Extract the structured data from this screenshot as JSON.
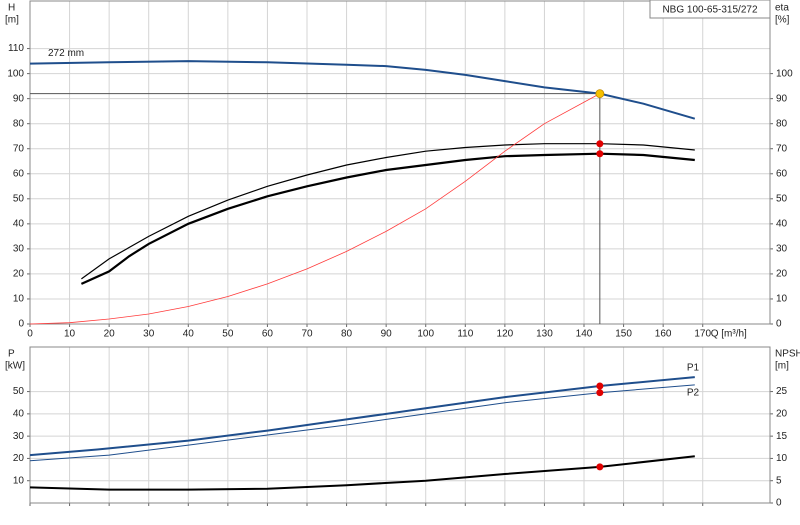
{
  "chart_data": [
    {
      "type": "line",
      "title": "NBG 100-65-315/272",
      "ylabel": "H",
      "yunit": "[m]",
      "y2label": "eta",
      "y2unit": "[%]",
      "xlabel": "Q [m³/h]",
      "xlim": [
        0,
        187
      ],
      "xticks": [
        0,
        10,
        20,
        30,
        40,
        50,
        60,
        70,
        80,
        90,
        100,
        110,
        120,
        130,
        140,
        150,
        160,
        170
      ],
      "show_xtick_labels": true,
      "ylim": [
        0,
        129
      ],
      "yticks": [
        0,
        10,
        20,
        30,
        40,
        50,
        60,
        70,
        80,
        90,
        100,
        110
      ],
      "y2lim": [
        0,
        129
      ],
      "y2ticks": [
        0,
        10,
        20,
        30,
        40,
        50,
        60,
        70,
        80,
        90,
        100
      ],
      "grid": true,
      "series": [
        {
          "name": "272 mm",
          "color": "#1f4e8c",
          "line_width": 2,
          "x": [
            0,
            20,
            40,
            60,
            80,
            90,
            100,
            110,
            120,
            130,
            144,
            155,
            168
          ],
          "values": [
            104,
            104.5,
            105,
            104.5,
            103.5,
            103,
            101.5,
            99.5,
            97,
            94.5,
            92,
            88,
            82
          ]
        },
        {
          "color": "#000000",
          "line_width": 1.2,
          "axis": "y2",
          "x": [
            13,
            20,
            30,
            40,
            50,
            60,
            70,
            80,
            90,
            100,
            110,
            120,
            130,
            144,
            155,
            168
          ],
          "values": [
            18,
            26,
            35,
            43,
            49.5,
            55,
            59.5,
            63.5,
            66.5,
            69,
            70.5,
            71.5,
            72,
            72,
            71.5,
            69.5
          ]
        },
        {
          "color": "#000000",
          "line_width": 2.2,
          "axis": "y2",
          "x": [
            13,
            20,
            25,
            30,
            40,
            50,
            60,
            70,
            80,
            90,
            100,
            110,
            120,
            130,
            144,
            155,
            168
          ],
          "values": [
            16,
            21,
            27,
            32,
            40,
            46,
            51,
            55,
            58.5,
            61.5,
            63.5,
            65.5,
            67,
            67.5,
            68,
            67.5,
            65.5
          ]
        },
        {
          "color": "#ff3b3b",
          "line_width": 0.8,
          "x": [
            0,
            10,
            20,
            30,
            40,
            50,
            60,
            70,
            80,
            90,
            100,
            110,
            120,
            130,
            144
          ],
          "values": [
            0,
            0.5,
            2,
            4,
            7,
            11,
            16,
            22,
            29,
            37,
            46,
            57,
            69,
            80,
            92
          ]
        }
      ],
      "duty_point": {
        "x": 144,
        "y": 92,
        "color": "#f5c000"
      },
      "points": [
        {
          "x": 144,
          "y": 72,
          "axis": "y2",
          "color": "#e00000"
        },
        {
          "x": 144,
          "y": 68,
          "axis": "y2",
          "color": "#e00000"
        }
      ]
    },
    {
      "type": "line",
      "ylabel": "P",
      "yunit": "[kW]",
      "y2label": "NPSH",
      "y2unit": "[m]",
      "xlim": [
        0,
        187
      ],
      "xticks": [
        0,
        10,
        20,
        30,
        40,
        50,
        60,
        70,
        80,
        90,
        100,
        110,
        120,
        130,
        140,
        150,
        160,
        170
      ],
      "show_xtick_labels": false,
      "ylim": [
        0,
        70
      ],
      "yticks": [
        10,
        20,
        30,
        40,
        50
      ],
      "y2lim": [
        0,
        35
      ],
      "y2ticks": [
        0,
        5,
        10,
        15,
        20,
        25
      ],
      "grid": true,
      "series": [
        {
          "name": "P1",
          "color": "#1f4e8c",
          "line_width": 2,
          "x": [
            0,
            17,
            40,
            60,
            80,
            100,
            120,
            144,
            168
          ],
          "values": [
            21.5,
            24,
            28,
            32.5,
            37.5,
            42.5,
            47.5,
            52.5,
            56.5
          ]
        },
        {
          "name": "P2",
          "color": "#1f4e8c",
          "line_width": 1,
          "x": [
            0,
            20,
            40,
            60,
            80,
            100,
            120,
            144,
            168
          ],
          "values": [
            19,
            21.5,
            26,
            30.5,
            35,
            40,
            45,
            49.5,
            53
          ]
        },
        {
          "color": "#000000",
          "line_width": 2,
          "axis": "y2",
          "x": [
            0,
            20,
            40,
            60,
            80,
            100,
            120,
            144,
            168
          ],
          "values": [
            3.5,
            3,
            3,
            3.2,
            4,
            5,
            6.5,
            8.1,
            10.5
          ]
        }
      ],
      "points": [
        {
          "x": 144,
          "y": 52.5,
          "color": "#e00000"
        },
        {
          "x": 144,
          "y": 49.5,
          "color": "#e00000"
        },
        {
          "x": 144,
          "y": 8.1,
          "axis": "y2",
          "color": "#e00000"
        }
      ]
    }
  ]
}
